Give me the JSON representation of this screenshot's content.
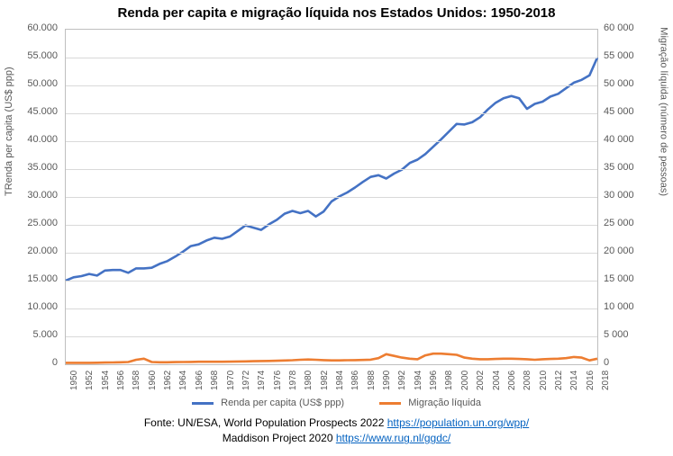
{
  "title": "Renda per capita e migração líquida nos Estados Unidos: 1950-2018",
  "chart": {
    "type": "line",
    "background_color": "#ffffff",
    "grid_color": "#d9d9d9",
    "border_color": "#bfbfbf",
    "x": {
      "years": [
        1950,
        1952,
        1954,
        1956,
        1958,
        1960,
        1962,
        1964,
        1966,
        1968,
        1970,
        1972,
        1974,
        1976,
        1978,
        1980,
        1982,
        1984,
        1986,
        1988,
        1990,
        1992,
        1994,
        1996,
        1998,
        2000,
        2002,
        2004,
        2006,
        2008,
        2010,
        2012,
        2014,
        2016,
        2018
      ],
      "label_fontsize": 10,
      "every_n_years": 2
    },
    "y_left": {
      "title": "TRenda per capita (US$ ppp)",
      "min": 0,
      "max": 60000,
      "step": 5000,
      "ticks": [
        "0",
        "5.000",
        "10.000",
        "15.000",
        "20.000",
        "25.000",
        "30.000",
        "35.000",
        "40.000",
        "45.000",
        "50.000",
        "55.000",
        "60.000"
      ],
      "label_fontsize": 11
    },
    "y_right": {
      "title": "Migração líquida (número de pessoas)",
      "min": 0,
      "max": 60000,
      "step": 5000,
      "ticks": [
        "0",
        "5 000",
        "10 000",
        "15 000",
        "20 000",
        "25 000",
        "30 000",
        "35 000",
        "40 000",
        "45 000",
        "50 000",
        "55 000",
        "60 000"
      ],
      "label_fontsize": 11
    },
    "series": [
      {
        "name": "Renda per capita (US$ ppp)",
        "color": "#4472c4",
        "line_width": 2.6,
        "axis": "left",
        "data_years": [
          1950,
          1951,
          1952,
          1953,
          1954,
          1955,
          1956,
          1957,
          1958,
          1959,
          1960,
          1961,
          1962,
          1963,
          1964,
          1965,
          1966,
          1967,
          1968,
          1969,
          1970,
          1971,
          1972,
          1973,
          1974,
          1975,
          1976,
          1977,
          1978,
          1979,
          1980,
          1981,
          1982,
          1983,
          1984,
          1985,
          1986,
          1987,
          1988,
          1989,
          1990,
          1991,
          1992,
          1993,
          1994,
          1995,
          1996,
          1997,
          1998,
          1999,
          2000,
          2001,
          2002,
          2003,
          2004,
          2005,
          2006,
          2007,
          2008,
          2009,
          2010,
          2011,
          2012,
          2013,
          2014,
          2015,
          2016,
          2017,
          2018
        ],
        "data_values": [
          15000,
          15600,
          15800,
          16200,
          15900,
          16800,
          16900,
          16900,
          16400,
          17200,
          17200,
          17300,
          18000,
          18500,
          19300,
          20200,
          21200,
          21500,
          22200,
          22700,
          22500,
          22900,
          23900,
          24900,
          24500,
          24100,
          25100,
          25900,
          27000,
          27500,
          27100,
          27500,
          26500,
          27400,
          29200,
          30100,
          30800,
          31700,
          32700,
          33600,
          33900,
          33300,
          34200,
          34900,
          36100,
          36700,
          37700,
          39000,
          40300,
          41700,
          43100,
          43000,
          43400,
          44300,
          45700,
          46900,
          47700,
          48100,
          47700,
          45800,
          46700,
          47100,
          48000,
          48500,
          49500,
          50500,
          51000,
          51800,
          55000
        ]
      },
      {
        "name": "Migração líquida",
        "color": "#ed7d31",
        "line_width": 2.6,
        "axis": "right",
        "data_years": [
          1950,
          1951,
          1952,
          1953,
          1954,
          1955,
          1956,
          1957,
          1958,
          1959,
          1960,
          1961,
          1962,
          1963,
          1964,
          1965,
          1966,
          1967,
          1968,
          1969,
          1970,
          1971,
          1972,
          1973,
          1974,
          1975,
          1976,
          1977,
          1978,
          1979,
          1980,
          1981,
          1982,
          1983,
          1984,
          1985,
          1986,
          1987,
          1988,
          1989,
          1990,
          1991,
          1992,
          1993,
          1994,
          1995,
          1996,
          1997,
          1998,
          1999,
          2000,
          2001,
          2002,
          2003,
          2004,
          2005,
          2006,
          2007,
          2008,
          2009,
          2010,
          2011,
          2012,
          2013,
          2014,
          2015,
          2016,
          2017,
          2018
        ],
        "data_values": [
          250,
          250,
          250,
          260,
          280,
          300,
          320,
          350,
          400,
          800,
          1000,
          400,
          350,
          350,
          380,
          400,
          420,
          450,
          450,
          450,
          450,
          470,
          500,
          520,
          550,
          580,
          600,
          630,
          680,
          720,
          800,
          850,
          800,
          750,
          700,
          700,
          720,
          750,
          780,
          820,
          1100,
          1800,
          1500,
          1200,
          1000,
          900,
          1600,
          1900,
          1900,
          1800,
          1700,
          1200,
          1000,
          900,
          900,
          950,
          1000,
          1000,
          950,
          900,
          800,
          900,
          950,
          1000,
          1100,
          1300,
          1200,
          700,
          1000
        ]
      }
    ]
  },
  "legend": {
    "items": [
      {
        "label": "Renda per capita (US$ ppp)",
        "color": "#4472c4"
      },
      {
        "label": "Migração líquida",
        "color": "#ed7d31"
      }
    ],
    "fontsize": 11
  },
  "source": {
    "line1_prefix": "Fonte: UN/ESA, World Population Prospects 2022 ",
    "line1_link": "https://population.un.org/wpp/",
    "line2_prefix": "Maddison Project 2020 ",
    "line2_link": "https://www.rug.nl/ggdc/",
    "fontsize": 12
  }
}
